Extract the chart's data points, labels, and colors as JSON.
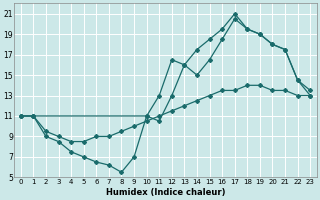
{
  "xlabel": "Humidex (Indice chaleur)",
  "bg_color": "#cce8e8",
  "grid_color": "#ffffff",
  "line_color": "#1a6b6b",
  "xlim": [
    -0.5,
    23.5
  ],
  "ylim": [
    5,
    22
  ],
  "xticks": [
    0,
    1,
    2,
    3,
    4,
    5,
    6,
    7,
    8,
    9,
    10,
    11,
    12,
    13,
    14,
    15,
    16,
    17,
    18,
    19,
    20,
    21,
    22,
    23
  ],
  "yticks": [
    5,
    7,
    9,
    11,
    13,
    15,
    17,
    19,
    21
  ],
  "line1_x": [
    0,
    1,
    2,
    3,
    4,
    5,
    6,
    7,
    8,
    9,
    10,
    11,
    12,
    13,
    14,
    15,
    16,
    17,
    18,
    19,
    20,
    21,
    22,
    23
  ],
  "line1_y": [
    11,
    11,
    9,
    8.5,
    7.5,
    7,
    6.5,
    6.2,
    5.5,
    7,
    11,
    10.5,
    13,
    16,
    15,
    16.5,
    18.5,
    20.5,
    19.5,
    19,
    18,
    17.5,
    14.5,
    13
  ],
  "line2_x": [
    0,
    1,
    2,
    3,
    4,
    5,
    6,
    7,
    8,
    9,
    10,
    11,
    12,
    13,
    14,
    15,
    16,
    17,
    18,
    19,
    20,
    21,
    22,
    23
  ],
  "line2_y": [
    11,
    11,
    9.5,
    9,
    8.5,
    8.5,
    9,
    9,
    9.5,
    10,
    10.5,
    11,
    11.5,
    12,
    12.5,
    13,
    13.5,
    13.5,
    14,
    14,
    13.5,
    13.5,
    13,
    13
  ],
  "line3_x": [
    0,
    1,
    10,
    11,
    12,
    13,
    14,
    15,
    16,
    17,
    18,
    19,
    20,
    21,
    22,
    23
  ],
  "line3_y": [
    11,
    11,
    11,
    13,
    16.5,
    16,
    17.5,
    18.5,
    19.5,
    21,
    19.5,
    19,
    18,
    17.5,
    14.5,
    13.5
  ]
}
